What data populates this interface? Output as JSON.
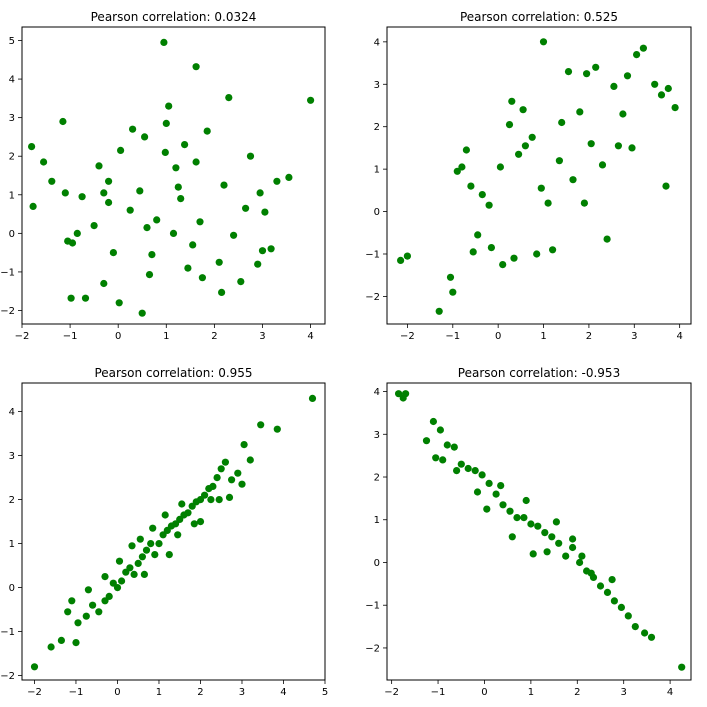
{
  "chart_data": [
    {
      "type": "scatter",
      "title": "Pearson correlation: 0.0324",
      "color": "#008000",
      "xlim": [
        -2.0,
        4.3
      ],
      "ylim": [
        -2.35,
        5.35
      ],
      "xticks": [
        -2,
        -1,
        0,
        1,
        2,
        3,
        4
      ],
      "yticks": [
        -2,
        -1,
        0,
        1,
        2,
        3,
        4,
        5
      ],
      "x": [
        -1.8,
        -1.77,
        -1.55,
        -1.38,
        -1.1,
        -1.05,
        -0.95,
        -0.68,
        -0.98,
        -0.3,
        -0.85,
        0.02,
        0.5,
        0.95,
        1.62,
        2.3,
        0.55,
        1.05,
        3.55,
        0.65,
        1.45,
        1.75,
        0.3,
        -0.4,
        2.15,
        2.55,
        0.98,
        1.25,
        0.25,
        -0.2,
        -1.15,
        1.38,
        2.75,
        3.05,
        3.18,
        -0.5,
        -0.2,
        0.8,
        1.3,
        1.15,
        1.2,
        0.45,
        1.7,
        -0.1,
        2.1,
        2.4,
        0.05,
        -0.3,
        2.9,
        3.0,
        1.0,
        1.85,
        -0.75,
        0.6,
        2.2,
        2.65,
        3.3,
        2.95,
        1.55,
        0.7,
        4.0,
        1.62
      ],
      "y": [
        2.25,
        0.7,
        1.85,
        1.35,
        1.05,
        -0.2,
        -0.25,
        -1.68,
        -1.68,
        -1.3,
        0.0,
        -1.8,
        -2.07,
        4.95,
        4.32,
        3.52,
        2.5,
        3.3,
        1.45,
        -1.07,
        -0.9,
        -1.15,
        2.7,
        1.75,
        -1.53,
        -1.25,
        2.1,
        1.2,
        0.6,
        0.8,
        2.9,
        2.3,
        2.0,
        0.55,
        -0.4,
        0.2,
        1.35,
        0.35,
        0.9,
        0.0,
        1.7,
        1.1,
        0.3,
        -0.5,
        -0.75,
        -0.05,
        2.15,
        1.05,
        -0.8,
        -0.45,
        2.85,
        2.65,
        0.95,
        0.15,
        1.25,
        0.65,
        1.35,
        1.05,
        -0.3,
        -0.55,
        3.45,
        1.85
      ]
    },
    {
      "type": "scatter",
      "title": "Pearson correlation: 0.525",
      "color": "#008000",
      "xlim": [
        -2.45,
        4.25
      ],
      "ylim": [
        -2.65,
        4.35
      ],
      "xticks": [
        -2,
        -1,
        0,
        1,
        2,
        3,
        4
      ],
      "yticks": [
        -2,
        -1,
        0,
        1,
        2,
        3,
        4
      ],
      "x": [
        -1.3,
        -2.15,
        -2.0,
        -1.0,
        -1.05,
        -0.55,
        -0.45,
        -0.9,
        0.1,
        0.35,
        0.85,
        1.2,
        1.0,
        1.55,
        1.95,
        2.15,
        2.55,
        2.85,
        3.05,
        3.2,
        3.45,
        3.75,
        3.9,
        -0.6,
        -0.15,
        0.3,
        0.6,
        0.45,
        1.4,
        1.8,
        0.05,
        -0.35,
        2.4,
        2.3,
        2.65,
        3.6,
        -0.2,
        0.95,
        1.1,
        1.65,
        0.75,
        1.35,
        2.05,
        1.9,
        0.55,
        -0.7,
        -0.8,
        0.25,
        2.75,
        2.95,
        3.7
      ],
      "y": [
        -2.35,
        -1.15,
        -1.05,
        -1.9,
        -1.55,
        -0.95,
        -0.55,
        0.95,
        -1.25,
        -1.1,
        -1.0,
        -0.9,
        4.0,
        3.3,
        3.25,
        3.4,
        2.95,
        3.2,
        3.7,
        3.85,
        3.0,
        2.9,
        2.45,
        0.6,
        -0.85,
        2.6,
        1.55,
        1.35,
        2.1,
        2.35,
        1.05,
        0.4,
        -0.65,
        1.1,
        1.55,
        2.75,
        0.15,
        0.55,
        0.2,
        0.75,
        1.75,
        1.2,
        1.6,
        0.2,
        2.4,
        1.45,
        1.05,
        2.05,
        2.3,
        1.5,
        0.6
      ]
    },
    {
      "type": "scatter",
      "title": "Pearson correlation: 0.955",
      "color": "#008000",
      "xlim": [
        -2.3,
        5.0
      ],
      "ylim": [
        -2.1,
        4.65
      ],
      "xticks": [
        -2,
        -1,
        0,
        1,
        2,
        3,
        4,
        5
      ],
      "yticks": [
        -2,
        -1,
        0,
        1,
        2,
        3,
        4
      ],
      "x": [
        -2.0,
        -1.6,
        -1.35,
        -1.1,
        -1.0,
        -0.95,
        -0.75,
        -0.6,
        -0.45,
        -0.3,
        -0.2,
        -0.1,
        0.0,
        0.1,
        0.2,
        0.3,
        0.4,
        0.5,
        0.6,
        0.7,
        0.8,
        0.9,
        1.0,
        1.1,
        1.2,
        1.3,
        1.4,
        1.5,
        1.6,
        1.7,
        1.8,
        1.9,
        2.0,
        2.1,
        2.2,
        2.3,
        2.4,
        2.5,
        2.6,
        2.75,
        2.9,
        3.05,
        3.2,
        3.45,
        3.85,
        4.7,
        -0.3,
        0.35,
        0.65,
        1.25,
        1.55,
        2.0,
        2.45,
        0.85,
        1.45,
        -0.7,
        0.05,
        0.55,
        1.15,
        1.85,
        2.25,
        2.7,
        3.0,
        -1.2
      ],
      "y": [
        -1.8,
        -1.35,
        -1.2,
        -0.3,
        -1.25,
        -0.8,
        -0.65,
        -0.4,
        -0.55,
        -0.3,
        -0.2,
        0.1,
        0.0,
        0.15,
        0.35,
        0.45,
        0.3,
        0.55,
        0.7,
        0.85,
        1.0,
        0.75,
        1.0,
        1.2,
        1.3,
        1.4,
        1.45,
        1.55,
        1.65,
        1.7,
        1.85,
        1.95,
        2.0,
        2.1,
        2.25,
        2.3,
        2.5,
        2.7,
        2.85,
        2.45,
        2.6,
        3.25,
        2.9,
        3.7,
        3.6,
        4.3,
        0.25,
        0.95,
        0.3,
        0.75,
        1.9,
        1.5,
        2.0,
        1.35,
        1.2,
        -0.05,
        0.6,
        1.1,
        1.65,
        1.45,
        2.0,
        2.05,
        2.35,
        -0.55
      ]
    },
    {
      "type": "scatter",
      "title": "Pearson correlation: -0.953",
      "color": "#008000",
      "xlim": [
        -2.1,
        4.45
      ],
      "ylim": [
        -2.75,
        4.2
      ],
      "xticks": [
        -2,
        -1,
        0,
        1,
        2,
        3,
        4
      ],
      "yticks": [
        -2,
        -1,
        0,
        1,
        2,
        3,
        4
      ],
      "x": [
        -1.85,
        -1.75,
        -1.7,
        -1.25,
        -1.1,
        -1.05,
        -0.95,
        -0.8,
        -0.65,
        -0.5,
        -0.35,
        -0.2,
        -0.05,
        0.1,
        0.25,
        0.4,
        0.55,
        0.7,
        0.85,
        1.0,
        1.15,
        1.3,
        1.45,
        1.6,
        1.75,
        1.9,
        2.05,
        2.2,
        2.35,
        2.5,
        2.65,
        2.8,
        2.95,
        3.1,
        3.25,
        3.45,
        3.6,
        4.25,
        -0.6,
        -0.15,
        0.35,
        0.6,
        1.05,
        1.55,
        1.9,
        2.3,
        2.75,
        0.05,
        0.9,
        1.35,
        2.1,
        -0.9
      ],
      "y": [
        3.95,
        3.85,
        3.95,
        2.85,
        3.3,
        2.45,
        3.1,
        2.75,
        2.7,
        2.3,
        2.2,
        2.15,
        2.05,
        1.85,
        1.6,
        1.35,
        1.2,
        1.05,
        1.05,
        0.9,
        0.85,
        0.7,
        0.6,
        0.45,
        0.15,
        0.35,
        0.0,
        -0.2,
        -0.35,
        -0.55,
        -0.7,
        -0.9,
        -1.05,
        -1.25,
        -1.5,
        -1.65,
        -1.75,
        -2.45,
        2.15,
        1.65,
        1.8,
        0.6,
        0.2,
        0.95,
        0.55,
        -0.25,
        -0.4,
        1.25,
        1.45,
        0.25,
        0.15,
        2.4
      ]
    }
  ]
}
